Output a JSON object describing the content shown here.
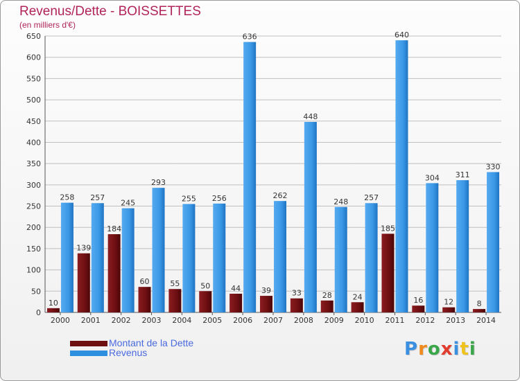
{
  "header": {
    "title": "Revenus/Dette - BOISSETTES",
    "subtitle": "(en milliers d'€)"
  },
  "colors": {
    "dette": "#6e0f12",
    "revenus": "#2e8fde",
    "title": "#b0245a",
    "legend_text": "#4a6ae0",
    "grid": "#bfbfbf"
  },
  "chart_data": {
    "type": "bar",
    "title": "Revenus/Dette - BOISSETTES",
    "subtitle": "(en milliers d'€)",
    "xlabel": "",
    "ylabel": "",
    "ylim": [
      0,
      650
    ],
    "yticks": [
      0,
      50,
      100,
      150,
      200,
      250,
      300,
      350,
      400,
      450,
      500,
      550,
      600,
      650
    ],
    "grid": true,
    "legend_position": "bottom-left",
    "categories": [
      "2000",
      "2001",
      "2002",
      "2003",
      "2004",
      "2005",
      "2006",
      "2007",
      "2008",
      "2009",
      "2010",
      "2011",
      "2012",
      "2013",
      "2014"
    ],
    "series": [
      {
        "name": "Montant de la Dette",
        "values": [
          10,
          139,
          184,
          60,
          55,
          50,
          44,
          39,
          33,
          28,
          24,
          185,
          16,
          12,
          8
        ]
      },
      {
        "name": "Revenus",
        "values": [
          258,
          257,
          245,
          293,
          255,
          256,
          636,
          262,
          448,
          248,
          257,
          640,
          304,
          311,
          330
        ]
      }
    ]
  },
  "legend": {
    "items": [
      {
        "label": "Montant de la Dette"
      },
      {
        "label": "Revenus"
      }
    ]
  },
  "logo": {
    "letters": [
      "P",
      "r",
      "o",
      "x",
      "i",
      "t",
      "i"
    ],
    "letter_colors": [
      "#3b8fe0",
      "#f08a1c",
      "#3aa64a",
      "#e23c2e",
      "#3b8fe0",
      "#f0c21c",
      "#3aa64a"
    ]
  }
}
